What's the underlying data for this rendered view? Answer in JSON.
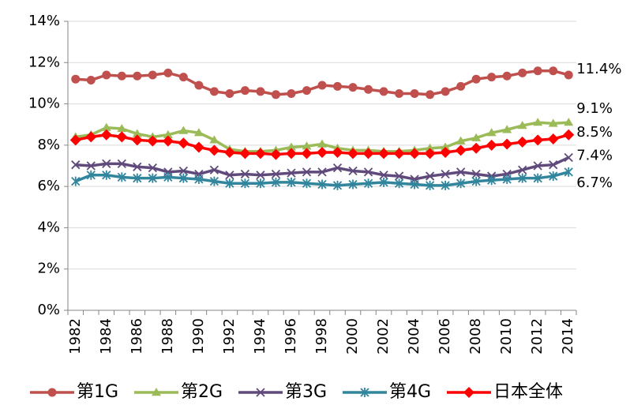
{
  "chart_data": {
    "type": "line",
    "categories": [
      "1982",
      null,
      "1984",
      null,
      "1986",
      null,
      "1988",
      null,
      "1990",
      null,
      "1992",
      null,
      "1994",
      null,
      "1996",
      null,
      "1998",
      null,
      "2000",
      null,
      "2002",
      null,
      "2004",
      null,
      "2006",
      null,
      "2008",
      null,
      "2010",
      null,
      "2012",
      null,
      "2014"
    ],
    "ylim": [
      0,
      14
    ],
    "yticks": [
      {
        "value": 0,
        "label": "0%"
      },
      {
        "value": 2,
        "label": "2%"
      },
      {
        "value": 4,
        "label": "4%"
      },
      {
        "value": 6,
        "label": "6%"
      },
      {
        "value": 8,
        "label": "8%"
      },
      {
        "value": 10,
        "label": "10%"
      },
      {
        "value": 12,
        "label": "12%"
      },
      {
        "value": 14,
        "label": "14%"
      }
    ],
    "grid": true,
    "legend": "bottom",
    "series": [
      {
        "name": "第1G",
        "color": "#c0504d",
        "marker": "circle",
        "values": [
          11.2,
          11.15,
          11.4,
          11.35,
          11.35,
          11.4,
          11.5,
          11.3,
          10.9,
          10.6,
          10.5,
          10.65,
          10.6,
          10.45,
          10.5,
          10.65,
          10.9,
          10.85,
          10.8,
          10.7,
          10.6,
          10.5,
          10.5,
          10.45,
          10.6,
          10.85,
          11.2,
          11.3,
          11.35,
          11.5,
          11.6,
          11.6,
          11.4
        ],
        "value_labels": [
          null,
          null,
          null,
          null,
          null,
          null,
          null,
          null,
          null,
          null,
          null,
          null,
          null,
          null,
          null,
          null,
          null,
          null,
          null,
          null,
          null,
          null,
          null,
          null,
          null,
          null,
          null,
          null,
          null,
          null,
          null,
          null,
          "11.4%"
        ]
      },
      {
        "name": "第2G",
        "color": "#9bbb59",
        "marker": "triangle",
        "values": [
          8.4,
          8.5,
          8.85,
          8.8,
          8.55,
          8.4,
          8.5,
          8.7,
          8.6,
          8.25,
          7.8,
          7.7,
          7.7,
          7.75,
          7.9,
          7.95,
          8.05,
          7.85,
          7.75,
          7.75,
          7.7,
          7.7,
          7.75,
          7.85,
          7.9,
          8.2,
          8.35,
          8.6,
          8.75,
          8.95,
          9.1,
          9.05,
          9.1
        ],
        "value_labels": [
          null,
          null,
          null,
          null,
          null,
          null,
          null,
          null,
          null,
          null,
          null,
          null,
          null,
          null,
          null,
          null,
          null,
          null,
          null,
          null,
          null,
          null,
          null,
          null,
          null,
          null,
          null,
          null,
          null,
          null,
          null,
          null,
          "9.1%"
        ]
      },
      {
        "name": "第3G",
        "color": "#604a7b",
        "marker": "x",
        "values": [
          7.05,
          7.0,
          7.1,
          7.1,
          6.95,
          6.9,
          6.7,
          6.75,
          6.6,
          6.8,
          6.55,
          6.6,
          6.55,
          6.6,
          6.65,
          6.7,
          6.7,
          6.9,
          6.75,
          6.7,
          6.55,
          6.5,
          6.35,
          6.5,
          6.6,
          6.7,
          6.6,
          6.5,
          6.6,
          6.8,
          7.0,
          7.05,
          7.4
        ],
        "value_labels": [
          null,
          null,
          null,
          null,
          null,
          null,
          null,
          null,
          null,
          null,
          null,
          null,
          null,
          null,
          null,
          null,
          null,
          null,
          null,
          null,
          null,
          null,
          null,
          null,
          null,
          null,
          null,
          null,
          null,
          null,
          null,
          null,
          "7.4%"
        ]
      },
      {
        "name": "第4G",
        "color": "#31859c",
        "marker": "star",
        "values": [
          6.25,
          6.55,
          6.55,
          6.45,
          6.4,
          6.4,
          6.45,
          6.4,
          6.35,
          6.25,
          6.15,
          6.15,
          6.15,
          6.2,
          6.2,
          6.15,
          6.1,
          6.05,
          6.1,
          6.15,
          6.2,
          6.15,
          6.1,
          6.05,
          6.05,
          6.15,
          6.25,
          6.3,
          6.35,
          6.4,
          6.4,
          6.5,
          6.7
        ],
        "value_labels": [
          null,
          null,
          null,
          null,
          null,
          null,
          null,
          null,
          null,
          null,
          null,
          null,
          null,
          null,
          null,
          null,
          null,
          null,
          null,
          null,
          null,
          null,
          null,
          null,
          null,
          null,
          null,
          null,
          null,
          null,
          null,
          null,
          "6.7%"
        ]
      },
      {
        "name": "日本全体",
        "color": "#ff0000",
        "marker": "diamond",
        "values": [
          8.25,
          8.4,
          8.5,
          8.4,
          8.25,
          8.2,
          8.2,
          8.1,
          7.9,
          7.75,
          7.65,
          7.6,
          7.6,
          7.55,
          7.6,
          7.6,
          7.65,
          7.65,
          7.6,
          7.6,
          7.6,
          7.6,
          7.6,
          7.6,
          7.65,
          7.75,
          7.85,
          8.0,
          8.05,
          8.15,
          8.25,
          8.3,
          8.5
        ],
        "value_labels": [
          null,
          null,
          null,
          null,
          null,
          null,
          null,
          null,
          null,
          null,
          null,
          null,
          null,
          null,
          null,
          null,
          null,
          null,
          null,
          null,
          null,
          null,
          null,
          null,
          null,
          null,
          null,
          null,
          null,
          null,
          null,
          null,
          "8.5%"
        ]
      }
    ]
  }
}
